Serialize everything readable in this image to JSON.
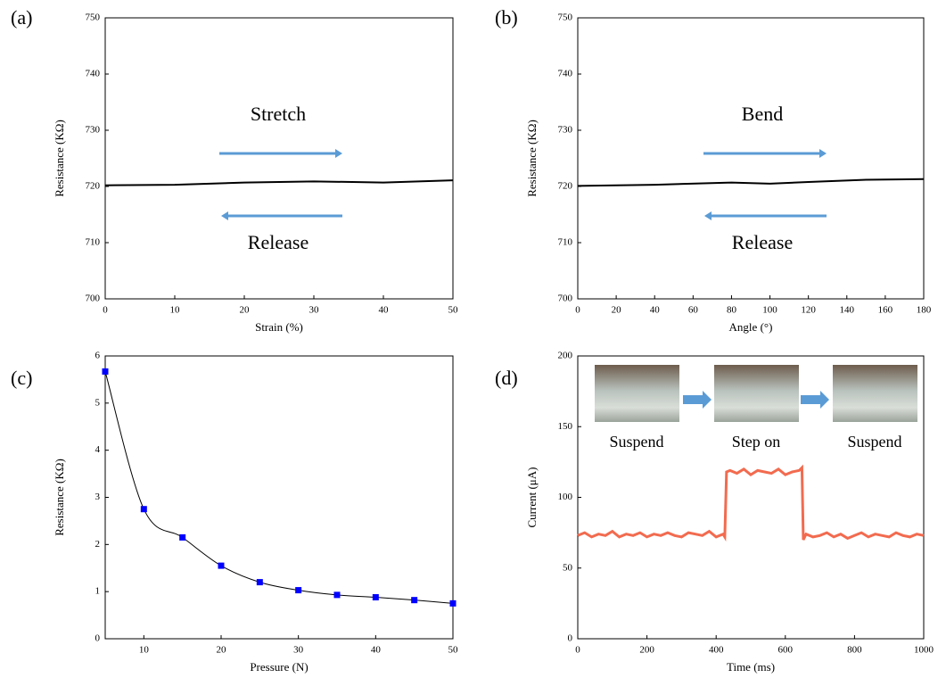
{
  "chart_data": [
    {
      "type": "line",
      "label": "(a)",
      "x_label": "Strain (%)",
      "y_label": "Resistance (KΩ)",
      "xlim": [
        0,
        50
      ],
      "xticks": [
        0,
        10,
        20,
        30,
        40,
        50
      ],
      "ylim": [
        700,
        750
      ],
      "yticks": [
        700,
        710,
        720,
        730,
        740,
        750
      ],
      "annotations": [
        "Stretch",
        "Release"
      ],
      "series": [
        {
          "color": "#000000",
          "x": [
            0,
            10,
            20,
            30,
            40,
            50
          ],
          "values": [
            720.2,
            720.3,
            720.7,
            720.9,
            720.7,
            721.1
          ]
        }
      ]
    },
    {
      "type": "line",
      "label": "(b)",
      "x_label": "Angle (°)",
      "y_label": "Resistance (KΩ)",
      "xlim": [
        0,
        180
      ],
      "xticks": [
        0,
        20,
        40,
        60,
        80,
        100,
        120,
        140,
        160,
        180
      ],
      "ylim": [
        700,
        750
      ],
      "yticks": [
        700,
        710,
        720,
        730,
        740,
        750
      ],
      "annotations": [
        "Bend",
        "Release"
      ],
      "series": [
        {
          "color": "#000000",
          "x": [
            0,
            40,
            80,
            100,
            120,
            150,
            180
          ],
          "values": [
            720.1,
            720.3,
            720.7,
            720.5,
            720.8,
            721.2,
            721.3
          ]
        }
      ]
    },
    {
      "type": "line",
      "label": "(c)",
      "x_label": "Pressure (N)",
      "y_label": "Resistance (KΩ)",
      "xlim": [
        5,
        50
      ],
      "xticks": [
        10,
        20,
        30,
        40,
        50
      ],
      "ylim": [
        0,
        6
      ],
      "yticks": [
        0,
        1,
        2,
        3,
        4,
        5,
        6
      ],
      "smooth": true,
      "markers": true,
      "marker_color": "#0000ff",
      "series": [
        {
          "color": "#000000",
          "x": [
            5,
            10,
            15,
            20,
            25,
            30,
            35,
            40,
            45,
            50
          ],
          "values": [
            5.67,
            2.75,
            2.15,
            1.55,
            1.2,
            1.03,
            0.93,
            0.88,
            0.82,
            0.75
          ]
        }
      ]
    },
    {
      "type": "line",
      "label": "(d)",
      "x_label": "Time (ms)",
      "y_label": "Current (μA)",
      "xlim": [
        0,
        1000
      ],
      "xticks": [
        0,
        200,
        400,
        600,
        800,
        1000
      ],
      "ylim": [
        0,
        200
      ],
      "yticks": [
        0,
        50,
        100,
        150,
        200
      ],
      "annotations": [
        "Suspend",
        "Step on",
        "Suspend"
      ],
      "series": [
        {
          "color": "#f26b4f",
          "x": [
            0,
            20,
            40,
            60,
            80,
            100,
            120,
            140,
            160,
            180,
            200,
            220,
            240,
            260,
            280,
            300,
            320,
            340,
            360,
            380,
            400,
            420,
            425,
            430,
            440,
            460,
            480,
            500,
            520,
            540,
            560,
            580,
            600,
            620,
            640,
            648,
            652,
            660,
            680,
            700,
            720,
            740,
            760,
            780,
            800,
            820,
            840,
            860,
            880,
            900,
            920,
            940,
            960,
            980,
            1000
          ],
          "values": [
            73,
            75,
            72,
            74,
            73,
            76,
            72,
            74,
            73,
            75,
            72,
            74,
            73,
            75,
            73,
            72,
            75,
            74,
            73,
            76,
            72,
            74,
            72,
            118,
            119,
            117,
            120,
            116,
            119,
            118,
            117,
            120,
            116,
            118,
            119,
            121,
            70,
            74,
            72,
            73,
            75,
            72,
            74,
            71,
            73,
            75,
            72,
            74,
            73,
            72,
            75,
            73,
            72,
            74,
            73
          ]
        }
      ]
    }
  ]
}
